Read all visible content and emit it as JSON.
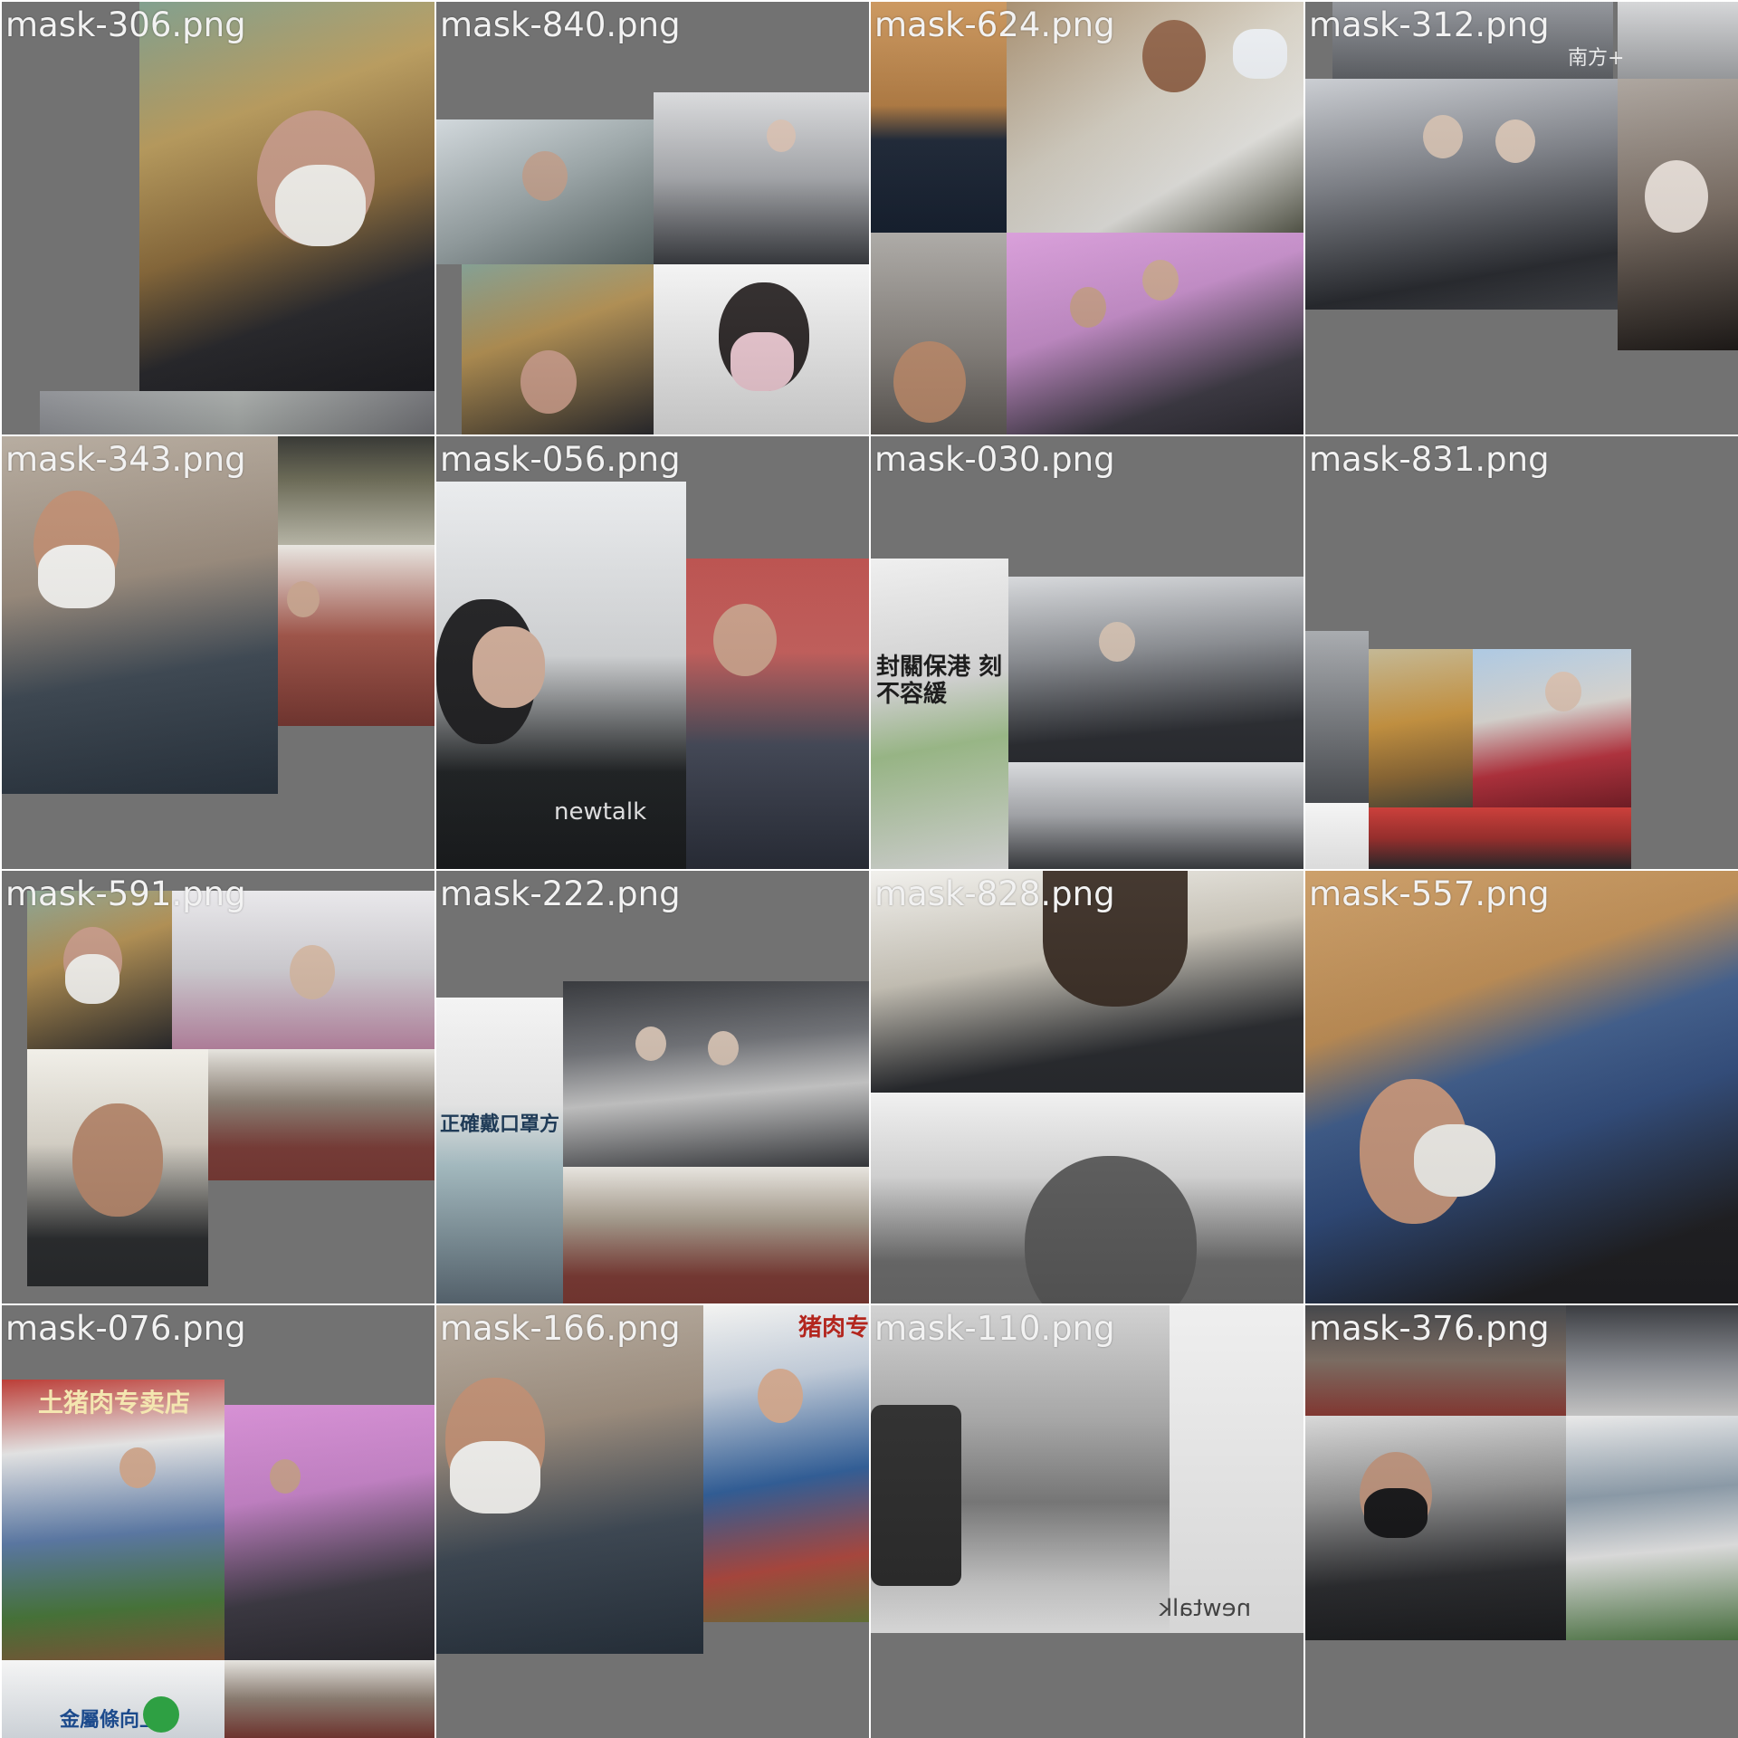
{
  "tiles": [
    {
      "label": "mask-306.png"
    },
    {
      "label": "mask-840.png"
    },
    {
      "label": "mask-624.png"
    },
    {
      "label": "mask-312.png",
      "watermark": "南方+"
    },
    {
      "label": "mask-343.png"
    },
    {
      "label": "mask-056.png",
      "watermark": "newtalk"
    },
    {
      "label": "mask-030.png",
      "sign_text": "封關保港 刻不容緩"
    },
    {
      "label": "mask-831.png"
    },
    {
      "label": "mask-591.png"
    },
    {
      "label": "mask-222.png",
      "sign_text": "正確戴口罩方"
    },
    {
      "label": "mask-828.png"
    },
    {
      "label": "mask-557.png"
    },
    {
      "label": "mask-076.png",
      "sign_text": "土猪肉专卖店",
      "sign_text_2": "金屬條向上"
    },
    {
      "label": "mask-166.png",
      "sign_text": "猪肉专卖店"
    },
    {
      "label": "mask-110.png",
      "watermark": "newtalk"
    },
    {
      "label": "mask-376.png"
    }
  ],
  "colors": {
    "background": "#727272",
    "label_text": "#f2f2f2"
  }
}
